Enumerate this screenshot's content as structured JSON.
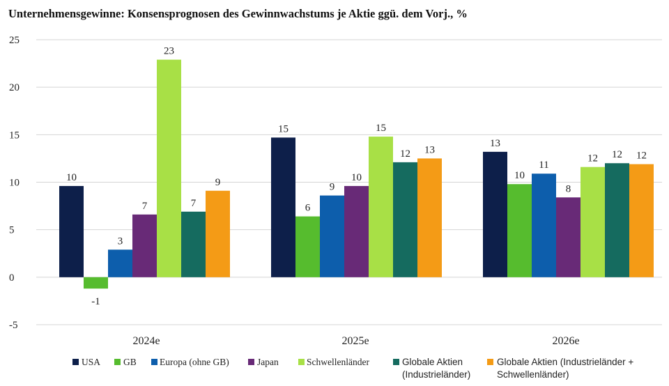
{
  "chart_data": {
    "type": "bar",
    "title": "Unternehmensgewinne: Konsensprognosen des Gewinnwachstums je Aktie ggü. dem Vorj., %",
    "categories": [
      "2024e",
      "2025e",
      "2026e"
    ],
    "ylim": [
      -5,
      25
    ],
    "yticks": [
      -5,
      0,
      5,
      10,
      15,
      20,
      25
    ],
    "grid": true,
    "legend_position": "bottom",
    "series": [
      {
        "name": "USA",
        "color": "#0d1f4a",
        "values": [
          9.6,
          14.7,
          13.2
        ],
        "labels": [
          "10",
          "15",
          "13"
        ]
      },
      {
        "name": "GB",
        "color": "#56bc2e",
        "values": [
          -1.2,
          6.4,
          9.8
        ],
        "labels": [
          "-1",
          "6",
          "10"
        ]
      },
      {
        "name": "Europa (ohne GB)",
        "color": "#0d5eac",
        "values": [
          2.9,
          8.6,
          10.9
        ],
        "labels": [
          "3",
          "9",
          "11"
        ]
      },
      {
        "name": "Japan",
        "color": "#682a77",
        "values": [
          6.6,
          9.6,
          8.4
        ],
        "labels": [
          "7",
          "10",
          "8"
        ]
      },
      {
        "name": "Schwellenländer",
        "color": "#a8e046",
        "values": [
          22.9,
          14.8,
          11.6
        ],
        "labels": [
          "23",
          "15",
          "12"
        ]
      },
      {
        "name": "Globale Aktien (Industrieländer)",
        "legend_lines": [
          "Globale Aktien",
          "(Industrieländer)"
        ],
        "color": "#156b5f",
        "values": [
          6.9,
          12.1,
          12.0
        ],
        "labels": [
          "7",
          "12",
          "12"
        ]
      },
      {
        "name": "Globale Aktien (Industrieländer + Schwellenländer)",
        "legend_lines": [
          "Globale Aktien (Industrieländer +",
          "Schwellenländer)"
        ],
        "color": "#f49b16",
        "values": [
          9.1,
          12.5,
          11.9
        ],
        "labels": [
          "9",
          "13",
          "12"
        ]
      }
    ]
  }
}
